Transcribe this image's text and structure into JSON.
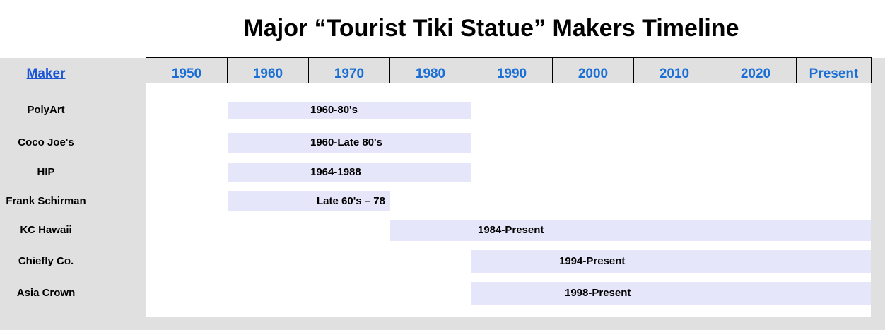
{
  "chart_data": {
    "type": "timeline",
    "title": "Major “Tourist Tiki Statue” Makers Timeline",
    "row_header": "Maker",
    "columns": [
      "1950",
      "1960",
      "1970",
      "1980",
      "1990",
      "2000",
      "2010",
      "2020",
      "Present"
    ],
    "bar_color": "#e6e6fa",
    "header_color": "#1a6fd6",
    "rows": [
      {
        "maker": "PolyArt",
        "label": "1960-80's",
        "start": "1960",
        "end": "1990"
      },
      {
        "maker": "Coco Joe's",
        "label": "1960-Late 80's",
        "start": "1960",
        "end": "1990"
      },
      {
        "maker": "HIP",
        "label": "1964-1988",
        "start": "1960",
        "end": "1990"
      },
      {
        "maker": "Frank Schirman",
        "label": "Late 60's – 78",
        "start": "1960",
        "end": "1980"
      },
      {
        "maker": "KC Hawaii",
        "label": "1984-Present",
        "start": "1980",
        "end": "Present"
      },
      {
        "maker": "Chiefly Co.",
        "label": "1994-Present",
        "start": "1990",
        "end": "Present"
      },
      {
        "maker": "Asia Crown",
        "label": "1998-Present",
        "start": "1990",
        "end": "Present"
      }
    ]
  }
}
